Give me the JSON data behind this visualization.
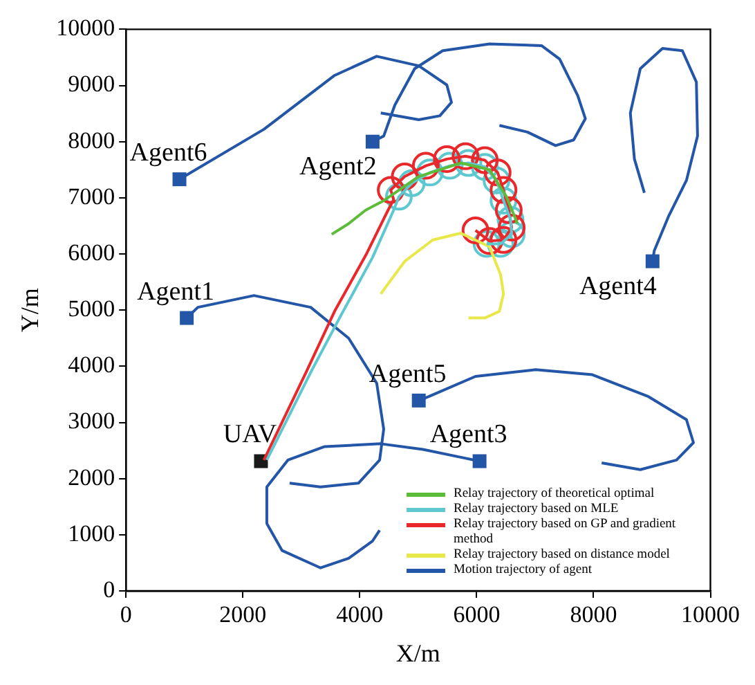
{
  "chart_data": {
    "type": "line",
    "xlabel": "X/m",
    "ylabel": "Y/m",
    "xlim": [
      0,
      10000
    ],
    "ylim": [
      0,
      10000
    ],
    "xticks": [
      0,
      2000,
      4000,
      6000,
      8000,
      10000
    ],
    "yticks": [
      0,
      1000,
      2000,
      3000,
      4000,
      5000,
      6000,
      7000,
      8000,
      9000,
      10000
    ],
    "grid": false,
    "legend": "bottom right",
    "line_style": "solid",
    "annotations": [
      {
        "text": "Agent6",
        "x": 915,
        "y": 7330
      },
      {
        "text": "Agent2",
        "x": 4220,
        "y": 8000
      },
      {
        "text": "Agent1",
        "x": 1040,
        "y": 4860
      },
      {
        "text": "Agent4",
        "x": 9010,
        "y": 5870
      },
      {
        "text": "Agent5",
        "x": 5010,
        "y": 3390
      },
      {
        "text": "Agent3",
        "x": 6050,
        "y": 2310
      },
      {
        "text": "UAV",
        "x": 2310,
        "y": 2310
      }
    ],
    "series": [
      {
        "name": "Relay trajectory of theoretical optimal",
        "color": "#5dbb3a",
        "type": "line",
        "x": [
          3520,
          3810,
          4100,
          4410,
          5010,
          5730,
          6220,
          6510,
          6700
        ],
        "values": [
          6350,
          6540,
          6780,
          6950,
          7380,
          7620,
          7500,
          7020,
          6540
        ]
      },
      {
        "name": "Relay trajectory based on MLE",
        "color": "#5ec8d0",
        "type": "line",
        "x": [
          2410,
          3160,
          3690,
          4220,
          4580,
          4670,
          4890,
          5200,
          5540,
          5860,
          6140,
          6340,
          6460,
          6580,
          6600,
          6410,
          6170
        ],
        "values": [
          2330,
          3890,
          4930,
          5940,
          6780,
          7020,
          7260,
          7450,
          7570,
          7620,
          7550,
          7310,
          6950,
          6610,
          6350,
          6180,
          6180
        ]
      },
      {
        "name": "Relay trajectory based on GP and gradient method",
        "color": "#e8282b",
        "type": "line",
        "x": [
          2360,
          3080,
          3570,
          4120,
          4460,
          4580,
          4530,
          4770,
          5130,
          5490,
          5810,
          6140,
          6360,
          6460,
          6550,
          6600,
          6460,
          6220,
          5980
        ],
        "values": [
          2330,
          3890,
          4980,
          6010,
          6730,
          6970,
          7140,
          7380,
          7570,
          7690,
          7740,
          7670,
          7450,
          7140,
          6780,
          6470,
          6250,
          6230,
          6420
        ]
      },
      {
        "name": "Relay trajectory based on distance model",
        "color": "#e8e84a",
        "type": "line",
        "x": [
          4360,
          4770,
          5250,
          5730,
          6220,
          6410,
          6460,
          6390,
          6140,
          5860
        ],
        "values": [
          5290,
          5870,
          6250,
          6370,
          6130,
          5630,
          5290,
          4980,
          4860,
          4860
        ]
      },
      {
        "name": "Motion trajectory of agent",
        "color": "#2456a8",
        "type": "line",
        "x": [
          915,
          2360,
          3570,
          4290,
          5010,
          5490,
          5570,
          5370,
          5010,
          4360
        ],
        "values": [
          7330,
          8220,
          9180,
          9520,
          9350,
          9010,
          8700,
          8460,
          8390,
          8510
        ]
      },
      {
        "color": "#2456a8",
        "type": "line",
        "x": [
          4220,
          4410,
          4600,
          4940,
          5420,
          6220,
          7110,
          7420,
          7730,
          7860,
          7660,
          7350,
          6870,
          6390
        ],
        "values": [
          8000,
          8100,
          8650,
          9300,
          9620,
          9740,
          9710,
          9470,
          8820,
          8410,
          8030,
          7930,
          8170,
          8290
        ]
      },
      {
        "color": "#2456a8",
        "type": "line",
        "x": [
          9010,
          9040,
          9280,
          9590,
          9780,
          9760,
          9520,
          9180,
          8800,
          8630,
          8700,
          8870
        ],
        "values": [
          5870,
          6060,
          6660,
          7310,
          8100,
          9060,
          9620,
          9660,
          9300,
          8510,
          7690,
          7090
        ]
      },
      {
        "color": "#2456a8",
        "type": "line",
        "x": [
          1040,
          1230,
          2190,
          3160,
          3810,
          4290,
          4410,
          4340,
          3980,
          3330,
          2800
        ],
        "values": [
          4860,
          5050,
          5260,
          5050,
          4500,
          3700,
          2880,
          2330,
          1920,
          1850,
          1920
        ]
      },
      {
        "color": "#2456a8",
        "type": "line",
        "x": [
          6050,
          5730,
          5080,
          4360,
          3400,
          2770,
          2410,
          2410,
          2670,
          3330,
          3810,
          4220,
          4340
        ],
        "values": [
          2310,
          2380,
          2520,
          2620,
          2570,
          2330,
          1850,
          1200,
          720,
          410,
          580,
          890,
          1080
        ]
      },
      {
        "color": "#2456a8",
        "type": "line",
        "x": [
          5010,
          5180,
          5980,
          7010,
          7980,
          8940,
          9590,
          9710,
          9420,
          8800,
          8140
        ],
        "values": [
          3390,
          3460,
          3820,
          3940,
          3850,
          3460,
          3050,
          2640,
          2330,
          2160,
          2280
        ]
      },
      {
        "color": "#e8282b",
        "type": "scatter",
        "x": [
          4530,
          4770,
          5130,
          5490,
          5810,
          6140,
          6360,
          6460,
          6550,
          6600,
          6460,
          6220,
          5980
        ],
        "values": [
          7140,
          7380,
          7570,
          7690,
          7740,
          7670,
          7450,
          7140,
          6780,
          6470,
          6250,
          6230,
          6420
        ]
      },
      {
        "color": "#5ec8d0",
        "type": "scatter",
        "x": [
          4670,
          4890,
          5200,
          5540,
          5860,
          6140,
          6340,
          6460,
          6580,
          6600,
          6410,
          6170
        ],
        "values": [
          7020,
          7260,
          7450,
          7570,
          7620,
          7550,
          7310,
          6950,
          6610,
          6350,
          6180,
          6180
        ]
      }
    ]
  }
}
